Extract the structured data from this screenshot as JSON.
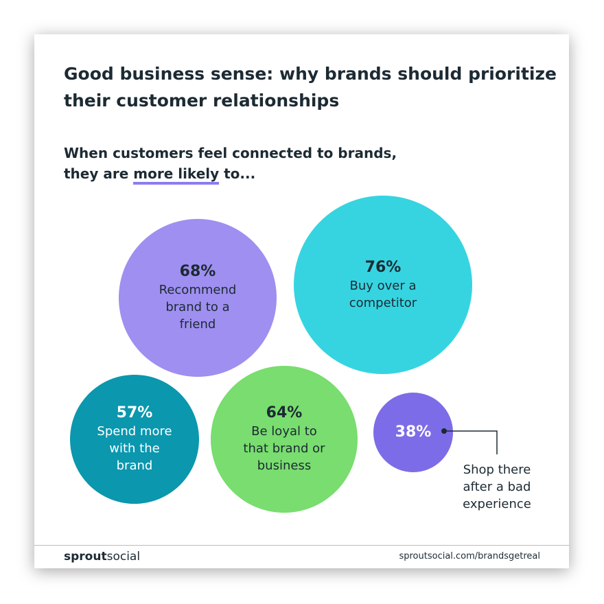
{
  "chart_data": {
    "type": "bubble",
    "title": "Good business sense: why brands should prioritize their customer relationships",
    "subtitle": [
      "When customers feel connected to brands,",
      "they are ",
      "more likely",
      " to..."
    ],
    "categories": [
      "Recommend brand to a friend",
      "Buy over a competitor",
      "Spend more with the brand",
      "Be loyal to that brand or business",
      "Shop there after a bad experience"
    ],
    "values": [
      68,
      76,
      57,
      64,
      38
    ],
    "value_labels": [
      "68%",
      "76%",
      "57%",
      "64%",
      "38%"
    ],
    "colors": [
      "#9f8ff0",
      "#36d4e1",
      "#0b97ae",
      "#79dd6f",
      "#7d6ce7"
    ]
  },
  "footer": {
    "brand_bold": "sprout",
    "brand_light": "social",
    "url": "sproutsocial.com/brandsgetreal"
  }
}
